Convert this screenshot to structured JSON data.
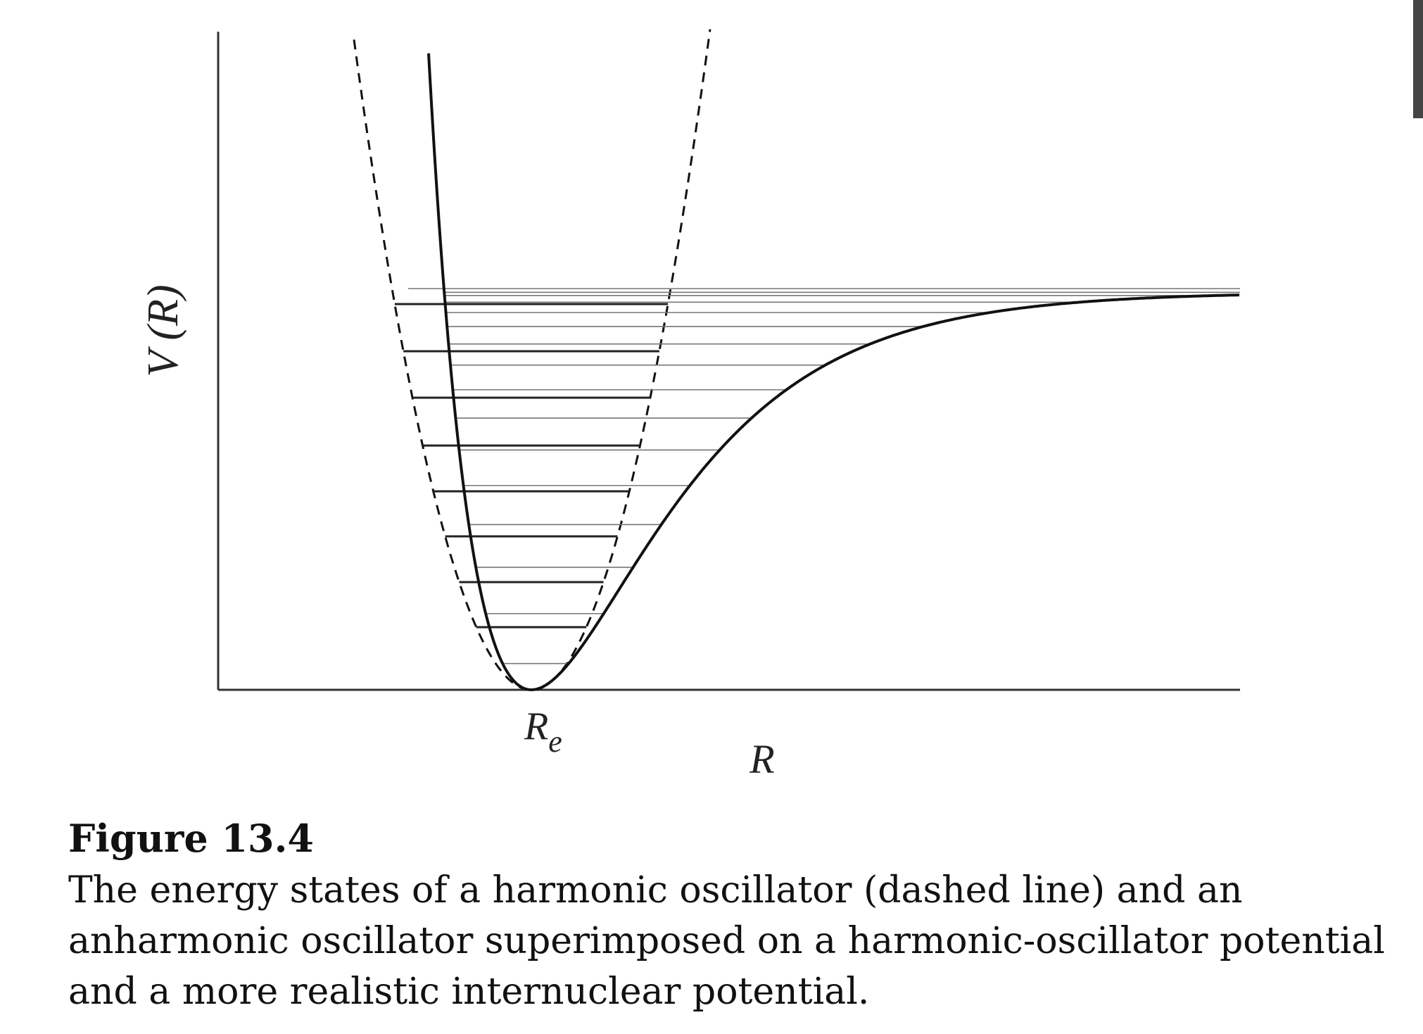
{
  "figure": {
    "y_label": "V (R)",
    "re_label": {
      "main": "R",
      "sub": "e"
    },
    "x_label": "R"
  },
  "caption": {
    "title": "Figure 13.4",
    "lines": [
      "The energy states of a harmonic oscillator (dashed line) and an",
      "anharmonic oscillator superimposed on a harmonic-oscillator potential",
      "and a more realistic internuclear potential."
    ]
  }
}
